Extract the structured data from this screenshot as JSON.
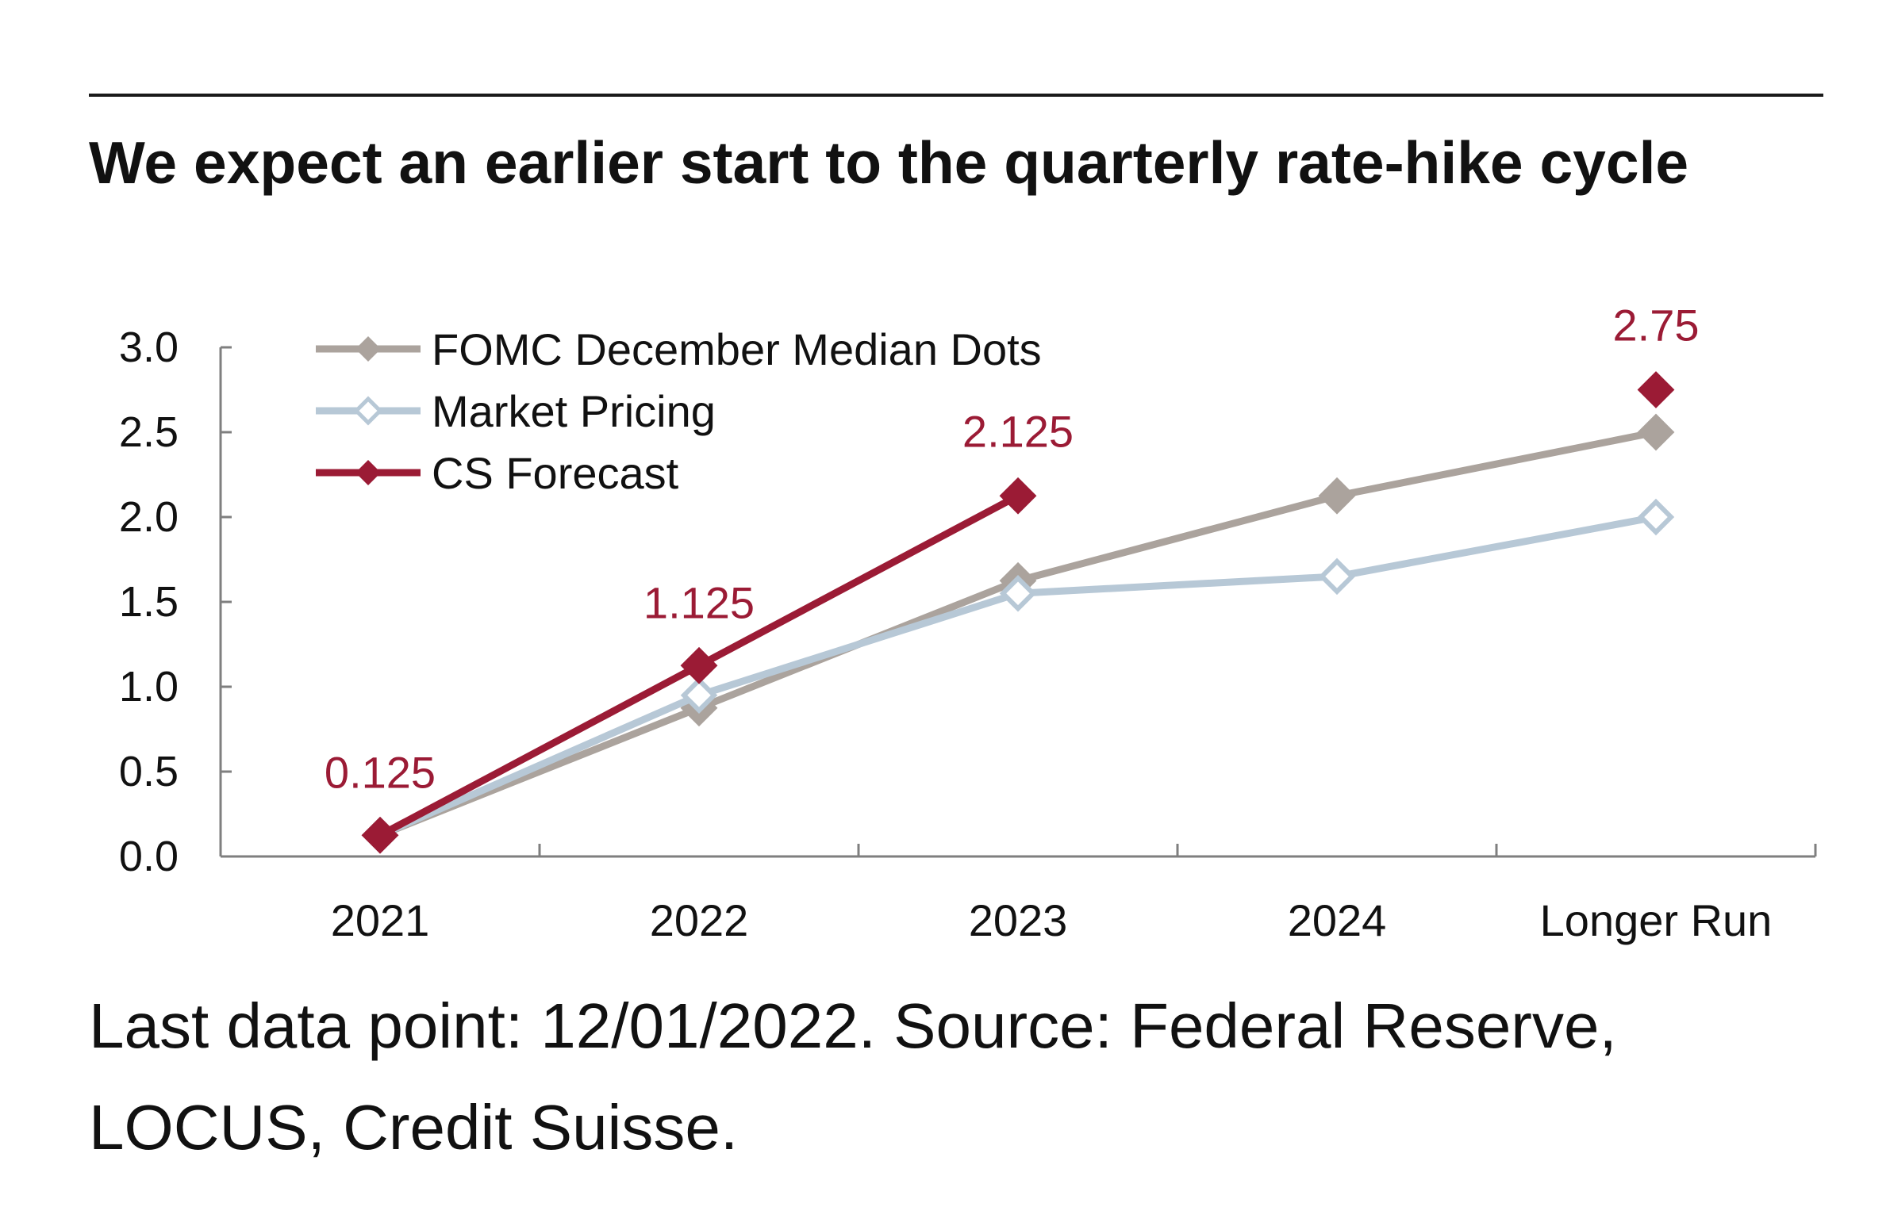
{
  "chart_data": {
    "type": "line",
    "title": "We expect an earlier start to the quarterly rate-hike cycle",
    "categories": [
      "2021",
      "2022",
      "2023",
      "2024",
      "Longer Run"
    ],
    "ylim": [
      0,
      3
    ],
    "yticks": [
      "0.0",
      "0.5",
      "1.0",
      "1.5",
      "2.0",
      "2.5",
      "3.0"
    ],
    "xlabel": "",
    "ylabel": "",
    "grid": false,
    "legend_position": "top-left",
    "series": [
      {
        "name": "FOMC December Median Dots",
        "color": "#aba39d",
        "marker": "filled-diamond",
        "values": [
          0.125,
          0.875,
          1.625,
          2.125,
          2.5
        ],
        "connect_last": true
      },
      {
        "name": "Market Pricing",
        "color": "#b7c8d6",
        "marker": "hollow-diamond",
        "values": [
          0.125,
          0.95,
          1.55,
          1.65,
          2.0
        ],
        "connect_last": true
      },
      {
        "name": "CS Forecast",
        "color": "#9b1b35",
        "marker": "filled-diamond",
        "values": [
          0.125,
          1.125,
          2.125,
          null,
          2.75
        ],
        "connect_last": false
      }
    ],
    "annotations": [
      {
        "text": "0.125",
        "category": "2021",
        "value": 0.125,
        "color": "#9b1b35"
      },
      {
        "text": "1.125",
        "category": "2022",
        "value": 1.125,
        "color": "#9b1b35"
      },
      {
        "text": "2.125",
        "category": "2023",
        "value": 2.125,
        "color": "#9b1b35"
      },
      {
        "text": "2.75",
        "category": "Longer Run",
        "value": 2.75,
        "color": "#9b1b35"
      }
    ]
  },
  "caption": "Last data point: 12/01/2022. Source: Federal Reserve, LOCUS, Credit Suisse."
}
